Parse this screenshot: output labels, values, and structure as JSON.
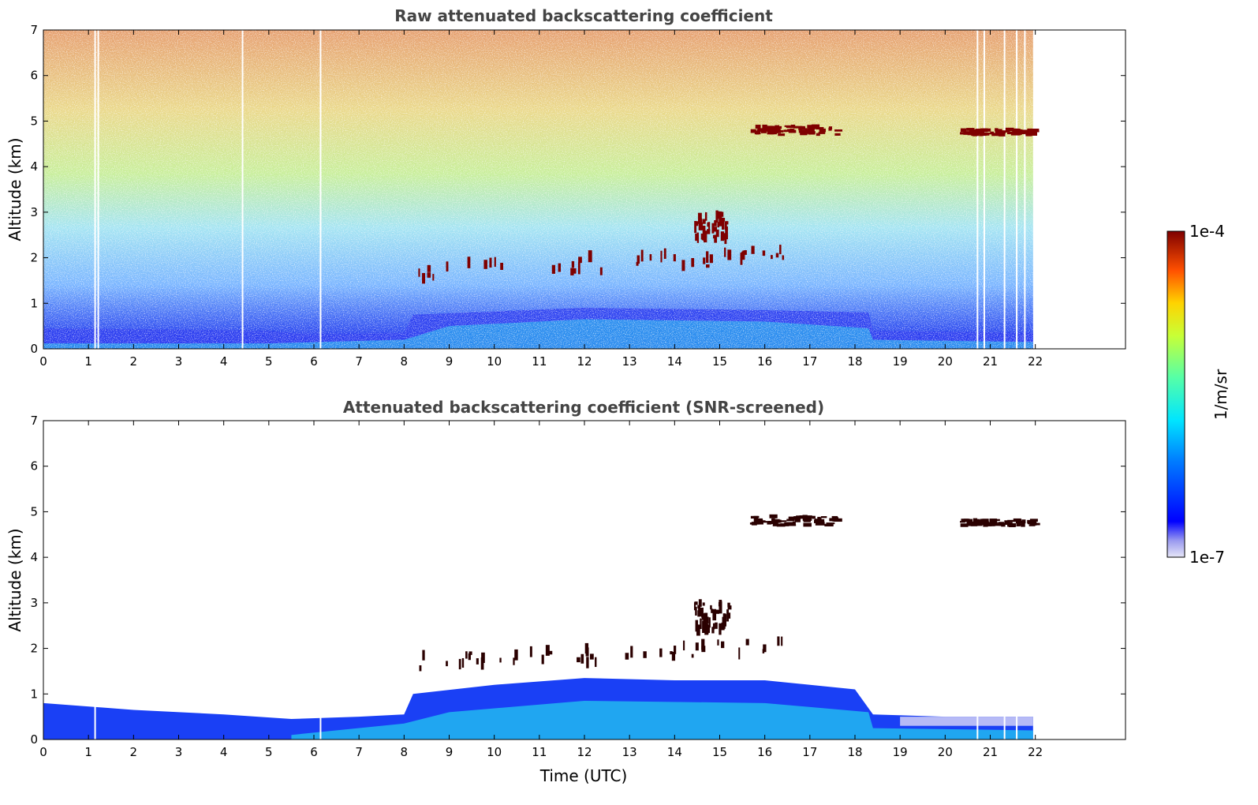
{
  "chart_data": [
    {
      "type": "heatmap",
      "title": "Raw attenuated backscattering coefficient",
      "ylabel": "Altitude (km)",
      "xlabel": "",
      "xlim": [
        0,
        24
      ],
      "ylim": [
        0,
        7
      ],
      "data_extent_x": [
        0,
        21.95
      ],
      "x_ticks": [
        "0",
        "1",
        "2",
        "3",
        "4",
        "5",
        "6",
        "7",
        "8",
        "9",
        "10",
        "11",
        "12",
        "13",
        "14",
        "15",
        "16",
        "17",
        "18",
        "19",
        "20",
        "21",
        "22"
      ],
      "y_ticks": [
        "0",
        "1",
        "2",
        "3",
        "4",
        "5",
        "6",
        "7"
      ],
      "gaps_x": [
        1.13,
        1.2,
        4.4,
        6.13,
        20.7,
        20.85,
        21.3,
        21.57,
        21.75
      ],
      "features": [
        {
          "kind": "cloud_layer",
          "x": [
            15.6,
            17.6
          ],
          "y": [
            4.7,
            4.9
          ]
        },
        {
          "kind": "cloud_layer",
          "x": [
            20.3,
            21.95
          ],
          "y": [
            4.7,
            4.82
          ]
        },
        {
          "kind": "cloud_patches",
          "x": [
            8.3,
            16.4
          ],
          "y": [
            1.5,
            2.2
          ]
        },
        {
          "kind": "cloud_patches",
          "x": [
            14.4,
            15.2
          ],
          "y": [
            2.4,
            3.0
          ]
        }
      ],
      "grid": false
    },
    {
      "type": "heatmap",
      "title": "Attenuated backscattering coefficient (SNR-screened)",
      "ylabel": "Altitude (km)",
      "xlabel": "Time (UTC)",
      "xlim": [
        0,
        24
      ],
      "ylim": [
        0,
        7
      ],
      "data_extent_x": [
        0,
        21.95
      ],
      "x_ticks": [
        "0",
        "1",
        "2",
        "3",
        "4",
        "5",
        "6",
        "7",
        "8",
        "9",
        "10",
        "11",
        "12",
        "13",
        "14",
        "15",
        "16",
        "17",
        "18",
        "19",
        "20",
        "21",
        "22"
      ],
      "y_ticks": [
        "0",
        "1",
        "2",
        "3",
        "4",
        "5",
        "6",
        "7"
      ],
      "boundary_layer_top_km": [
        [
          0,
          0.8
        ],
        [
          2,
          0.65
        ],
        [
          4,
          0.55
        ],
        [
          5.5,
          0.45
        ],
        [
          7,
          0.5
        ],
        [
          8,
          0.55
        ],
        [
          8.2,
          1.0
        ],
        [
          10,
          1.2
        ],
        [
          12,
          1.35
        ],
        [
          14,
          1.3
        ],
        [
          16,
          1.3
        ],
        [
          18,
          1.1
        ],
        [
          18.4,
          0.55
        ],
        [
          20,
          0.5
        ],
        [
          21.95,
          0.5
        ]
      ],
      "features": [
        {
          "kind": "cloud_layer",
          "x": [
            15.6,
            17.6
          ],
          "y": [
            4.7,
            4.9
          ]
        },
        {
          "kind": "cloud_layer",
          "x": [
            20.3,
            21.95
          ],
          "y": [
            4.7,
            4.82
          ]
        },
        {
          "kind": "cloud_patches",
          "x": [
            8.3,
            16.4
          ],
          "y": [
            1.5,
            2.2
          ]
        },
        {
          "kind": "cloud_patches",
          "x": [
            14.4,
            15.2
          ],
          "y": [
            2.4,
            3.0
          ]
        }
      ],
      "grid": false
    }
  ],
  "colorbar": {
    "label": "1/m/sr",
    "max_label": "1e-4",
    "min_label": "1e-7",
    "scale": "log",
    "range": [
      1e-07,
      0.0001
    ],
    "colormap": "jet"
  },
  "colors": {
    "title": "#444444",
    "axis": "#000000",
    "cloud": "#7f0000",
    "background": "#ffffff"
  }
}
